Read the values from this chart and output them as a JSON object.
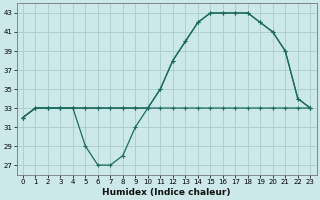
{
  "xlabel": "Humidex (Indice chaleur)",
  "bg_color": "#cce8e8",
  "grid_color": "#aacccc",
  "line_color": "#1a6b5e",
  "xlim": [
    -0.5,
    23.5
  ],
  "ylim": [
    26,
    44
  ],
  "xticks": [
    0,
    1,
    2,
    3,
    4,
    5,
    6,
    7,
    8,
    9,
    10,
    11,
    12,
    13,
    14,
    15,
    16,
    17,
    18,
    19,
    20,
    21,
    22,
    23
  ],
  "yticks": [
    27,
    29,
    31,
    33,
    35,
    37,
    39,
    41,
    43
  ],
  "line1_x": [
    0,
    1,
    2,
    3,
    4,
    5,
    6,
    7,
    8,
    9,
    10,
    11,
    12,
    13,
    14,
    15,
    16,
    17,
    18,
    19,
    20,
    21,
    22,
    23
  ],
  "line1_y": [
    32,
    33,
    33,
    33,
    33,
    33,
    33,
    33,
    33,
    33,
    33,
    33,
    33,
    33,
    33,
    33,
    33,
    33,
    33,
    33,
    33,
    33,
    33,
    33
  ],
  "line2_x": [
    0,
    1,
    2,
    3,
    4,
    5,
    6,
    7,
    8,
    9,
    10,
    11,
    12,
    13,
    14,
    15,
    16,
    17,
    18,
    19,
    20,
    21,
    22,
    23
  ],
  "line2_y": [
    32,
    33,
    33,
    33,
    33,
    33,
    33,
    33,
    33,
    33,
    33,
    35,
    38,
    40,
    42,
    43,
    43,
    43,
    43,
    42,
    41,
    39,
    34,
    33
  ],
  "line3_x": [
    0,
    1,
    2,
    3,
    4,
    5,
    6,
    7,
    8,
    9,
    10,
    11,
    12,
    13,
    14,
    15,
    16,
    17,
    18,
    19,
    20,
    21,
    22,
    23
  ],
  "line3_y": [
    32,
    33,
    33,
    33,
    33,
    29,
    27,
    27,
    28,
    31,
    33,
    35,
    38,
    40,
    42,
    43,
    43,
    43,
    43,
    42,
    41,
    39,
    34,
    33
  ]
}
